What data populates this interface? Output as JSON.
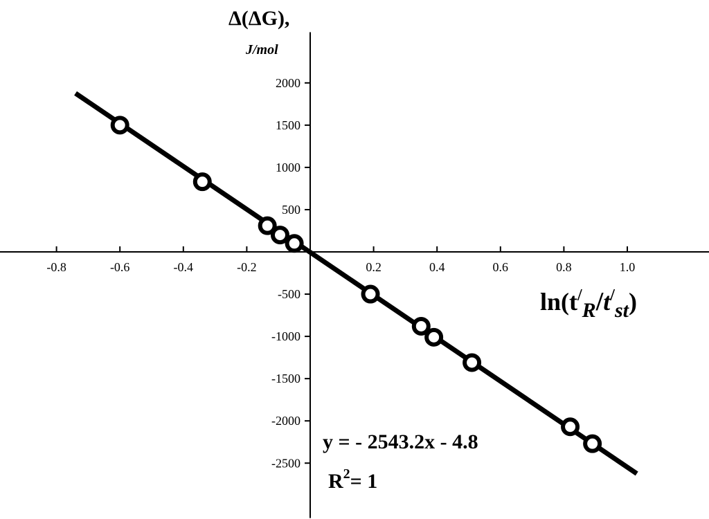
{
  "chart_data": {
    "type": "scatter",
    "title": "",
    "ylabel": "Δ(ΔG),",
    "ylabel_unit": "J/mol",
    "xlabel": {
      "prefix": "ln(t",
      "prime1": "/",
      "sub1": "R",
      "slash": "/",
      "mid": "t",
      "prime2": "/",
      "sub2": "st",
      "suffix": ")"
    },
    "xlim": [
      -1.2,
      1.5
    ],
    "ylim": [
      -3150,
      2600
    ],
    "x_ticks": [
      -0.8,
      -0.6,
      -0.4,
      -0.2,
      0.2,
      0.4,
      0.6,
      0.8,
      1.0
    ],
    "x_tick_labels": [
      "-0.8",
      "-0.6",
      "-0.4",
      "-0.2",
      "0.2",
      "0.4",
      "0.6",
      "0.8",
      "1.0"
    ],
    "y_ticks": [
      2000,
      1500,
      1000,
      500,
      -500,
      -1000,
      -1500,
      -2000,
      -2500
    ],
    "y_tick_labels": [
      "2000",
      "1500",
      "1000",
      "500",
      "-500",
      "-1000",
      "-1500",
      "-2000",
      "-2500"
    ],
    "grid": false,
    "series": [
      {
        "points": [
          {
            "x": -0.6,
            "y": 1500
          },
          {
            "x": -0.34,
            "y": 830
          },
          {
            "x": -0.135,
            "y": 310
          },
          {
            "x": -0.095,
            "y": 200
          },
          {
            "x": -0.05,
            "y": 100
          },
          {
            "x": 0.19,
            "y": -500
          },
          {
            "x": 0.35,
            "y": -880
          },
          {
            "x": 0.39,
            "y": -1010
          },
          {
            "x": 0.51,
            "y": -1310
          },
          {
            "x": 0.82,
            "y": -2070
          },
          {
            "x": 0.89,
            "y": -2270
          }
        ]
      }
    ],
    "fit_line": {
      "slope": -2543.2,
      "intercept": -4.8,
      "x_range": [
        -0.74,
        1.03
      ]
    },
    "annotations": {
      "equation": "y = - 2543.2x - 4.8",
      "r2_prefix": "R",
      "r2_sup": "2",
      "r2_suffix": "= 1"
    }
  }
}
